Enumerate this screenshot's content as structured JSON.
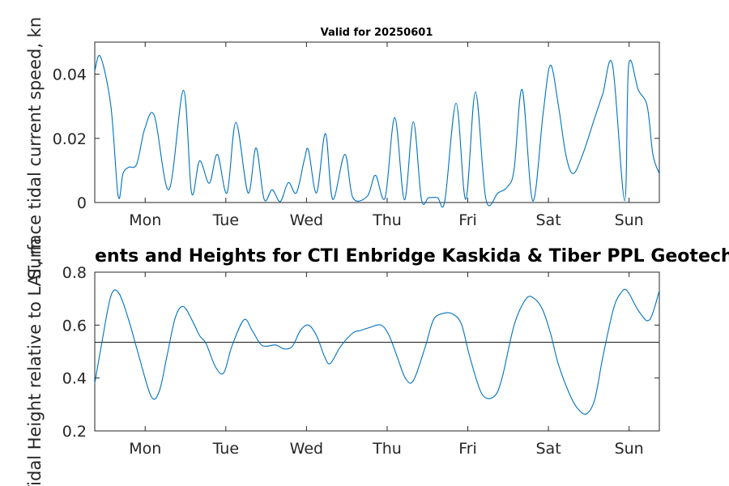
{
  "chart_data": [
    {
      "type": "line",
      "title": "Valid for 20250601",
      "ylabel": "Surface tidal current speed, kn",
      "xlim": [
        0,
        7
      ],
      "ylim": [
        0,
        0.05
      ],
      "yticks": [
        0,
        0.02,
        0.04
      ],
      "ytick_labels": [
        "0",
        "0.02",
        "0.04"
      ],
      "xticks": [
        0.625,
        1.625,
        2.625,
        3.625,
        4.625,
        5.625,
        6.625
      ],
      "xtick_labels": [
        "Mon",
        "Tue",
        "Wed",
        "Thu",
        "Fri",
        "Sat",
        "Sun"
      ],
      "series": [
        {
          "color": "#0072bd",
          "x": [
            0,
            0.07,
            0.2,
            0.29,
            0.35,
            0.42,
            0.52,
            0.62,
            0.74,
            0.92,
            1.1,
            1.2,
            1.3,
            1.42,
            1.52,
            1.64,
            1.75,
            1.9,
            2.0,
            2.1,
            2.2,
            2.3,
            2.4,
            2.5,
            2.6,
            2.65,
            2.75,
            2.86,
            2.95,
            3.1,
            3.2,
            3.38,
            3.48,
            3.6,
            3.72,
            3.84,
            3.95,
            4.05,
            4.14,
            4.25,
            4.34,
            4.48,
            4.6,
            4.72,
            4.85,
            5.0,
            5.12,
            5.2,
            5.3,
            5.43,
            5.56,
            5.65,
            5.75,
            5.84,
            5.93,
            6.05,
            6.2,
            6.3,
            6.42,
            6.57,
            6.62,
            6.74,
            6.85,
            6.92,
            7.0
          ],
          "values": [
            0.041,
            0.0455,
            0.03,
            0.002,
            0.009,
            0.011,
            0.012,
            0.023,
            0.027,
            0.004,
            0.035,
            0.003,
            0.013,
            0.006,
            0.015,
            0.003,
            0.025,
            0.003,
            0.017,
            0.001,
            0.004,
            0.0003,
            0.0062,
            0.003,
            0.0135,
            0.0163,
            0.003,
            0.0215,
            0.001,
            0.015,
            0.0015,
            0.002,
            0.0085,
            0.0015,
            0.0265,
            0.0008,
            0.0252,
            0.001,
            0.0015,
            0.0015,
            0.0005,
            0.031,
            0.001,
            0.0345,
            0.001,
            0.003,
            0.005,
            0.0105,
            0.0352,
            0.0005,
            0.028,
            0.0428,
            0.03,
            0.015,
            0.009,
            0.015,
            0.0265,
            0.034,
            0.0428,
            0.0005,
            0.0428,
            0.035,
            0.03,
            0.015,
            0.009
          ]
        }
      ]
    },
    {
      "type": "line",
      "title": "ents and Heights for CTI Enbridge  Kaskida & Tiber PPL Geotechnical a",
      "ylabel": "Tidal Height relative to LAT, m",
      "xlim": [
        0,
        7
      ],
      "ylim": [
        0.2,
        0.8
      ],
      "yticks": [
        0.2,
        0.4,
        0.6,
        0.8
      ],
      "ytick_labels": [
        "0.2",
        "0.4",
        "0.6",
        "0.8"
      ],
      "xticks": [
        0.625,
        1.625,
        2.625,
        3.625,
        4.625,
        5.625,
        6.625
      ],
      "xtick_labels": [
        "Mon",
        "Tue",
        "Wed",
        "Thu",
        "Fri",
        "Sat",
        "Sun"
      ],
      "reference_line": 0.535,
      "series": [
        {
          "color": "#0072bd",
          "x": [
            0,
            0.08,
            0.2,
            0.3,
            0.42,
            0.55,
            0.7,
            0.8,
            0.9,
            1.0,
            1.1,
            1.22,
            1.3,
            1.38,
            1.5,
            1.6,
            1.7,
            1.85,
            1.95,
            2.05,
            2.12,
            2.24,
            2.35,
            2.45,
            2.55,
            2.65,
            2.75,
            2.85,
            2.92,
            3.05,
            3.2,
            3.3,
            3.4,
            3.55,
            3.65,
            3.75,
            3.85,
            3.95,
            4.1,
            4.2,
            4.33,
            4.45,
            4.55,
            4.65,
            4.8,
            4.95,
            5.05,
            5.2,
            5.35,
            5.45,
            5.55,
            5.65,
            5.75,
            5.9,
            6.0,
            6.1,
            6.2,
            6.3,
            6.43,
            6.52,
            6.6,
            6.75,
            6.88,
            7.0
          ],
          "values": [
            0.38,
            0.52,
            0.71,
            0.72,
            0.62,
            0.48,
            0.33,
            0.35,
            0.49,
            0.63,
            0.67,
            0.61,
            0.56,
            0.53,
            0.44,
            0.42,
            0.52,
            0.62,
            0.58,
            0.53,
            0.52,
            0.525,
            0.51,
            0.52,
            0.58,
            0.6,
            0.56,
            0.48,
            0.455,
            0.52,
            0.57,
            0.58,
            0.59,
            0.6,
            0.56,
            0.48,
            0.4,
            0.39,
            0.52,
            0.62,
            0.645,
            0.64,
            0.6,
            0.48,
            0.34,
            0.33,
            0.4,
            0.6,
            0.7,
            0.7,
            0.66,
            0.57,
            0.45,
            0.33,
            0.28,
            0.265,
            0.32,
            0.48,
            0.66,
            0.72,
            0.73,
            0.65,
            0.62,
            0.73
          ]
        }
      ]
    }
  ]
}
